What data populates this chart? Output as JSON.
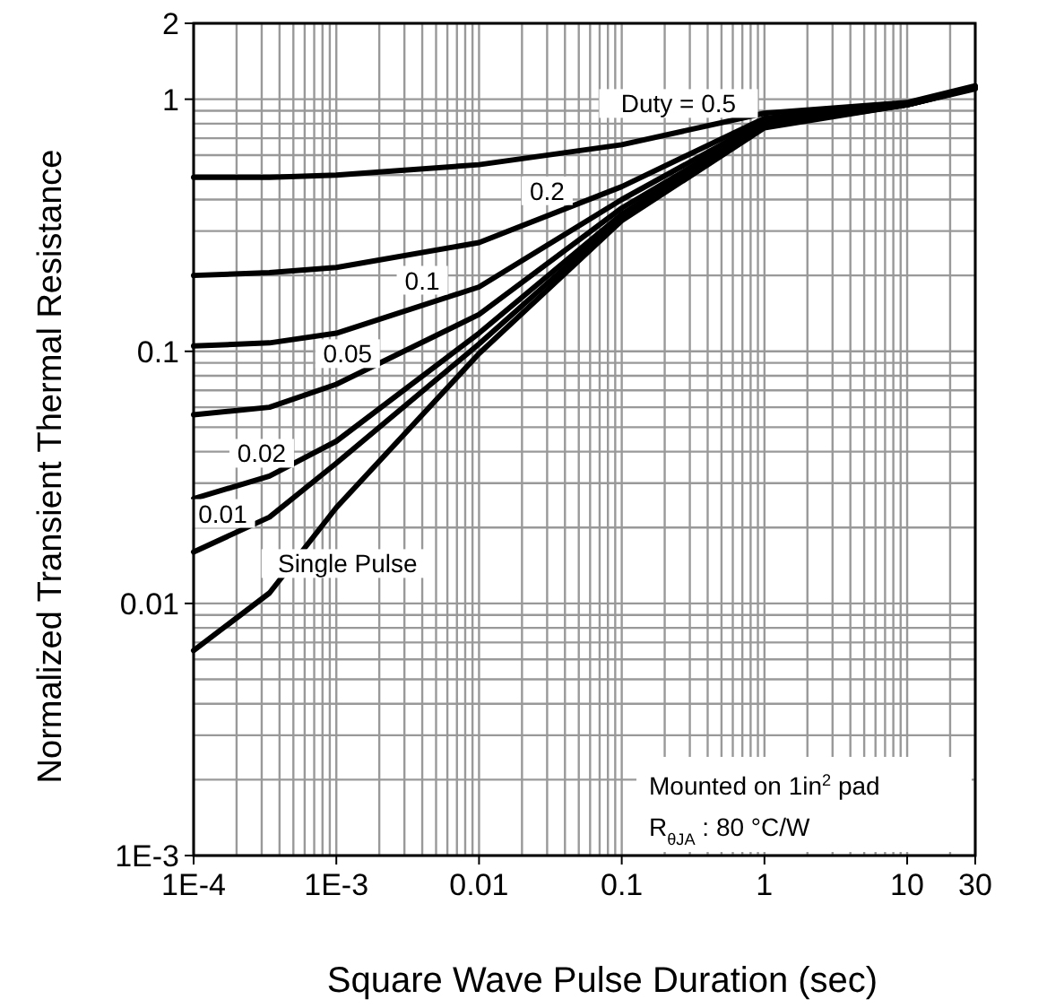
{
  "chart_data": {
    "type": "line",
    "xlabel": "Square Wave Pulse Duration (sec)",
    "ylabel": "Normalized Transient Thermal Resistance",
    "log": "xy",
    "grid": true,
    "line_style": "solid",
    "marker": "none",
    "xlim": [
      0.0001,
      30
    ],
    "ylim": [
      0.001,
      2
    ],
    "xticks": [
      {
        "value": 0.0001,
        "label": "1E-4"
      },
      {
        "value": 0.001,
        "label": "1E-3"
      },
      0.01,
      0.1,
      1,
      10,
      30
    ],
    "yticks": [
      {
        "value": 0.001,
        "label": "1E-3"
      },
      0.01,
      0.1,
      1,
      2
    ],
    "x": [
      0.0001,
      0.00034,
      0.001,
      0.01,
      0.1,
      1,
      10,
      30
    ],
    "series": [
      {
        "name": "Duty =  0.5",
        "color": "#000000",
        "values": [
          0.49,
          0.49,
          0.5,
          0.55,
          0.66,
          0.88,
          0.97,
          1.13
        ]
      },
      {
        "name": "0.2",
        "color": "#000000",
        "values": [
          0.2,
          0.205,
          0.215,
          0.27,
          0.45,
          0.84,
          0.96,
          1.12
        ]
      },
      {
        "name": "0.1",
        "color": "#000000",
        "values": [
          0.105,
          0.108,
          0.118,
          0.18,
          0.4,
          0.82,
          0.96,
          1.12
        ]
      },
      {
        "name": "0.05",
        "color": "#000000",
        "values": [
          0.056,
          0.06,
          0.074,
          0.14,
          0.37,
          0.8,
          0.95,
          1.11
        ]
      },
      {
        "name": "0.02",
        "color": "#000000",
        "values": [
          0.026,
          0.032,
          0.044,
          0.118,
          0.35,
          0.79,
          0.95,
          1.11
        ]
      },
      {
        "name": "0.01",
        "color": "#000000",
        "values": [
          0.016,
          0.022,
          0.036,
          0.107,
          0.34,
          0.78,
          0.95,
          1.11
        ]
      },
      {
        "name": "Single Pulse",
        "color": "#000000",
        "values": [
          0.0065,
          0.011,
          0.024,
          0.098,
          0.33,
          0.77,
          0.95,
          1.1
        ]
      }
    ],
    "annotations": [
      "Mounted on 1in$^{2}$ pad",
      "R$_{θJA}$ : 80 °C/W"
    ]
  }
}
